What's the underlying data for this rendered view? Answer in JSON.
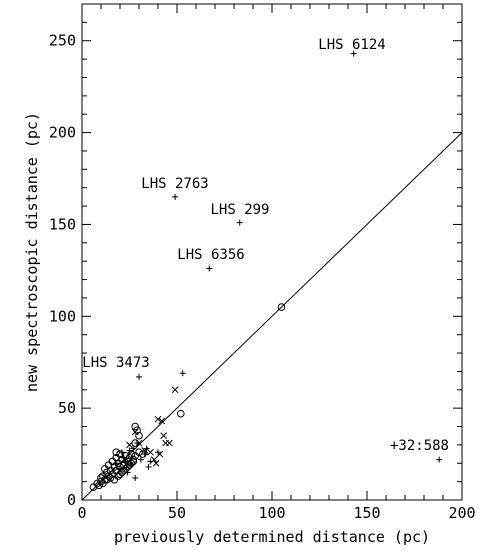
{
  "chart_data": {
    "type": "scatter",
    "title": "",
    "xlabel": "previously determined distance (pc)",
    "ylabel": "new spectroscopic distance (pc)",
    "xlim": [
      0,
      200
    ],
    "ylim": [
      0,
      270
    ],
    "x_ticks": [
      0,
      50,
      100,
      150,
      200
    ],
    "y_ticks": [
      0,
      50,
      100,
      150,
      200,
      250
    ],
    "grid": false,
    "legend": "none",
    "reference_line": {
      "x": [
        0,
        200
      ],
      "y": [
        0,
        200
      ]
    },
    "series": [
      {
        "marker": "plus",
        "points": [
          [
            143,
            243
          ],
          [
            49,
            165
          ],
          [
            83,
            151
          ],
          [
            67,
            126
          ],
          [
            30,
            67
          ],
          [
            53,
            69
          ],
          [
            188,
            22
          ],
          [
            26,
            19
          ],
          [
            28,
            12
          ],
          [
            33,
            25
          ],
          [
            36,
            21
          ],
          [
            25,
            27
          ],
          [
            22,
            23
          ],
          [
            27,
            28
          ],
          [
            40,
            26
          ],
          [
            18,
            20
          ],
          [
            31,
            22
          ],
          [
            20,
            17
          ],
          [
            24,
            15
          ],
          [
            29,
            31
          ],
          [
            35,
            18
          ],
          [
            21,
            26
          ],
          [
            34,
            28
          ],
          [
            23,
            21
          ]
        ]
      },
      {
        "marker": "cross",
        "points": [
          [
            49,
            60
          ],
          [
            28,
            37
          ],
          [
            40,
            44
          ],
          [
            42,
            43
          ],
          [
            44,
            31
          ],
          [
            46,
            31
          ],
          [
            43,
            35
          ],
          [
            38,
            22
          ],
          [
            41,
            25
          ],
          [
            30,
            31
          ],
          [
            33,
            27
          ],
          [
            25,
            30
          ],
          [
            36,
            26
          ],
          [
            39,
            20
          ]
        ]
      },
      {
        "marker": "circle",
        "points": [
          [
            105,
            105
          ],
          [
            52,
            47
          ],
          [
            28,
            40
          ],
          [
            29,
            38
          ],
          [
            30,
            35
          ],
          [
            28,
            31
          ],
          [
            6,
            7
          ],
          [
            8,
            9
          ],
          [
            10,
            10
          ],
          [
            11,
            13
          ],
          [
            12,
            11
          ],
          [
            13,
            15
          ],
          [
            14,
            13
          ],
          [
            15,
            16
          ],
          [
            16,
            14
          ],
          [
            17,
            18
          ],
          [
            18,
            16
          ],
          [
            19,
            20
          ],
          [
            20,
            18
          ],
          [
            21,
            22
          ],
          [
            22,
            19
          ],
          [
            23,
            24
          ],
          [
            24,
            21
          ],
          [
            25,
            23
          ],
          [
            26,
            25
          ],
          [
            27,
            22
          ],
          [
            12,
            17
          ],
          [
            14,
            19
          ],
          [
            16,
            21
          ],
          [
            18,
            23
          ],
          [
            20,
            14
          ],
          [
            22,
            16
          ],
          [
            24,
            18
          ],
          [
            26,
            20
          ],
          [
            28,
            24
          ],
          [
            15,
            12
          ],
          [
            17,
            11
          ],
          [
            19,
            13
          ],
          [
            21,
            15
          ],
          [
            23,
            17
          ],
          [
            25,
            19
          ],
          [
            27,
            21
          ],
          [
            9,
            8
          ],
          [
            11,
            9
          ],
          [
            13,
            11
          ],
          [
            30,
            26
          ],
          [
            32,
            25
          ],
          [
            10,
            12
          ],
          [
            20,
            25
          ],
          [
            18,
            26
          ]
        ]
      }
    ],
    "annotations": [
      {
        "text": "LHS 6124",
        "x": 143,
        "y": 243
      },
      {
        "text": "LHS 2763",
        "x": 49,
        "y": 165
      },
      {
        "text": "LHS 299",
        "x": 83,
        "y": 151
      },
      {
        "text": "LHS 6356",
        "x": 67,
        "y": 126
      },
      {
        "text": "LHS 3473",
        "x": 30,
        "y": 67
      },
      {
        "text": "+32:588",
        "x": 188,
        "y": 22
      }
    ]
  }
}
